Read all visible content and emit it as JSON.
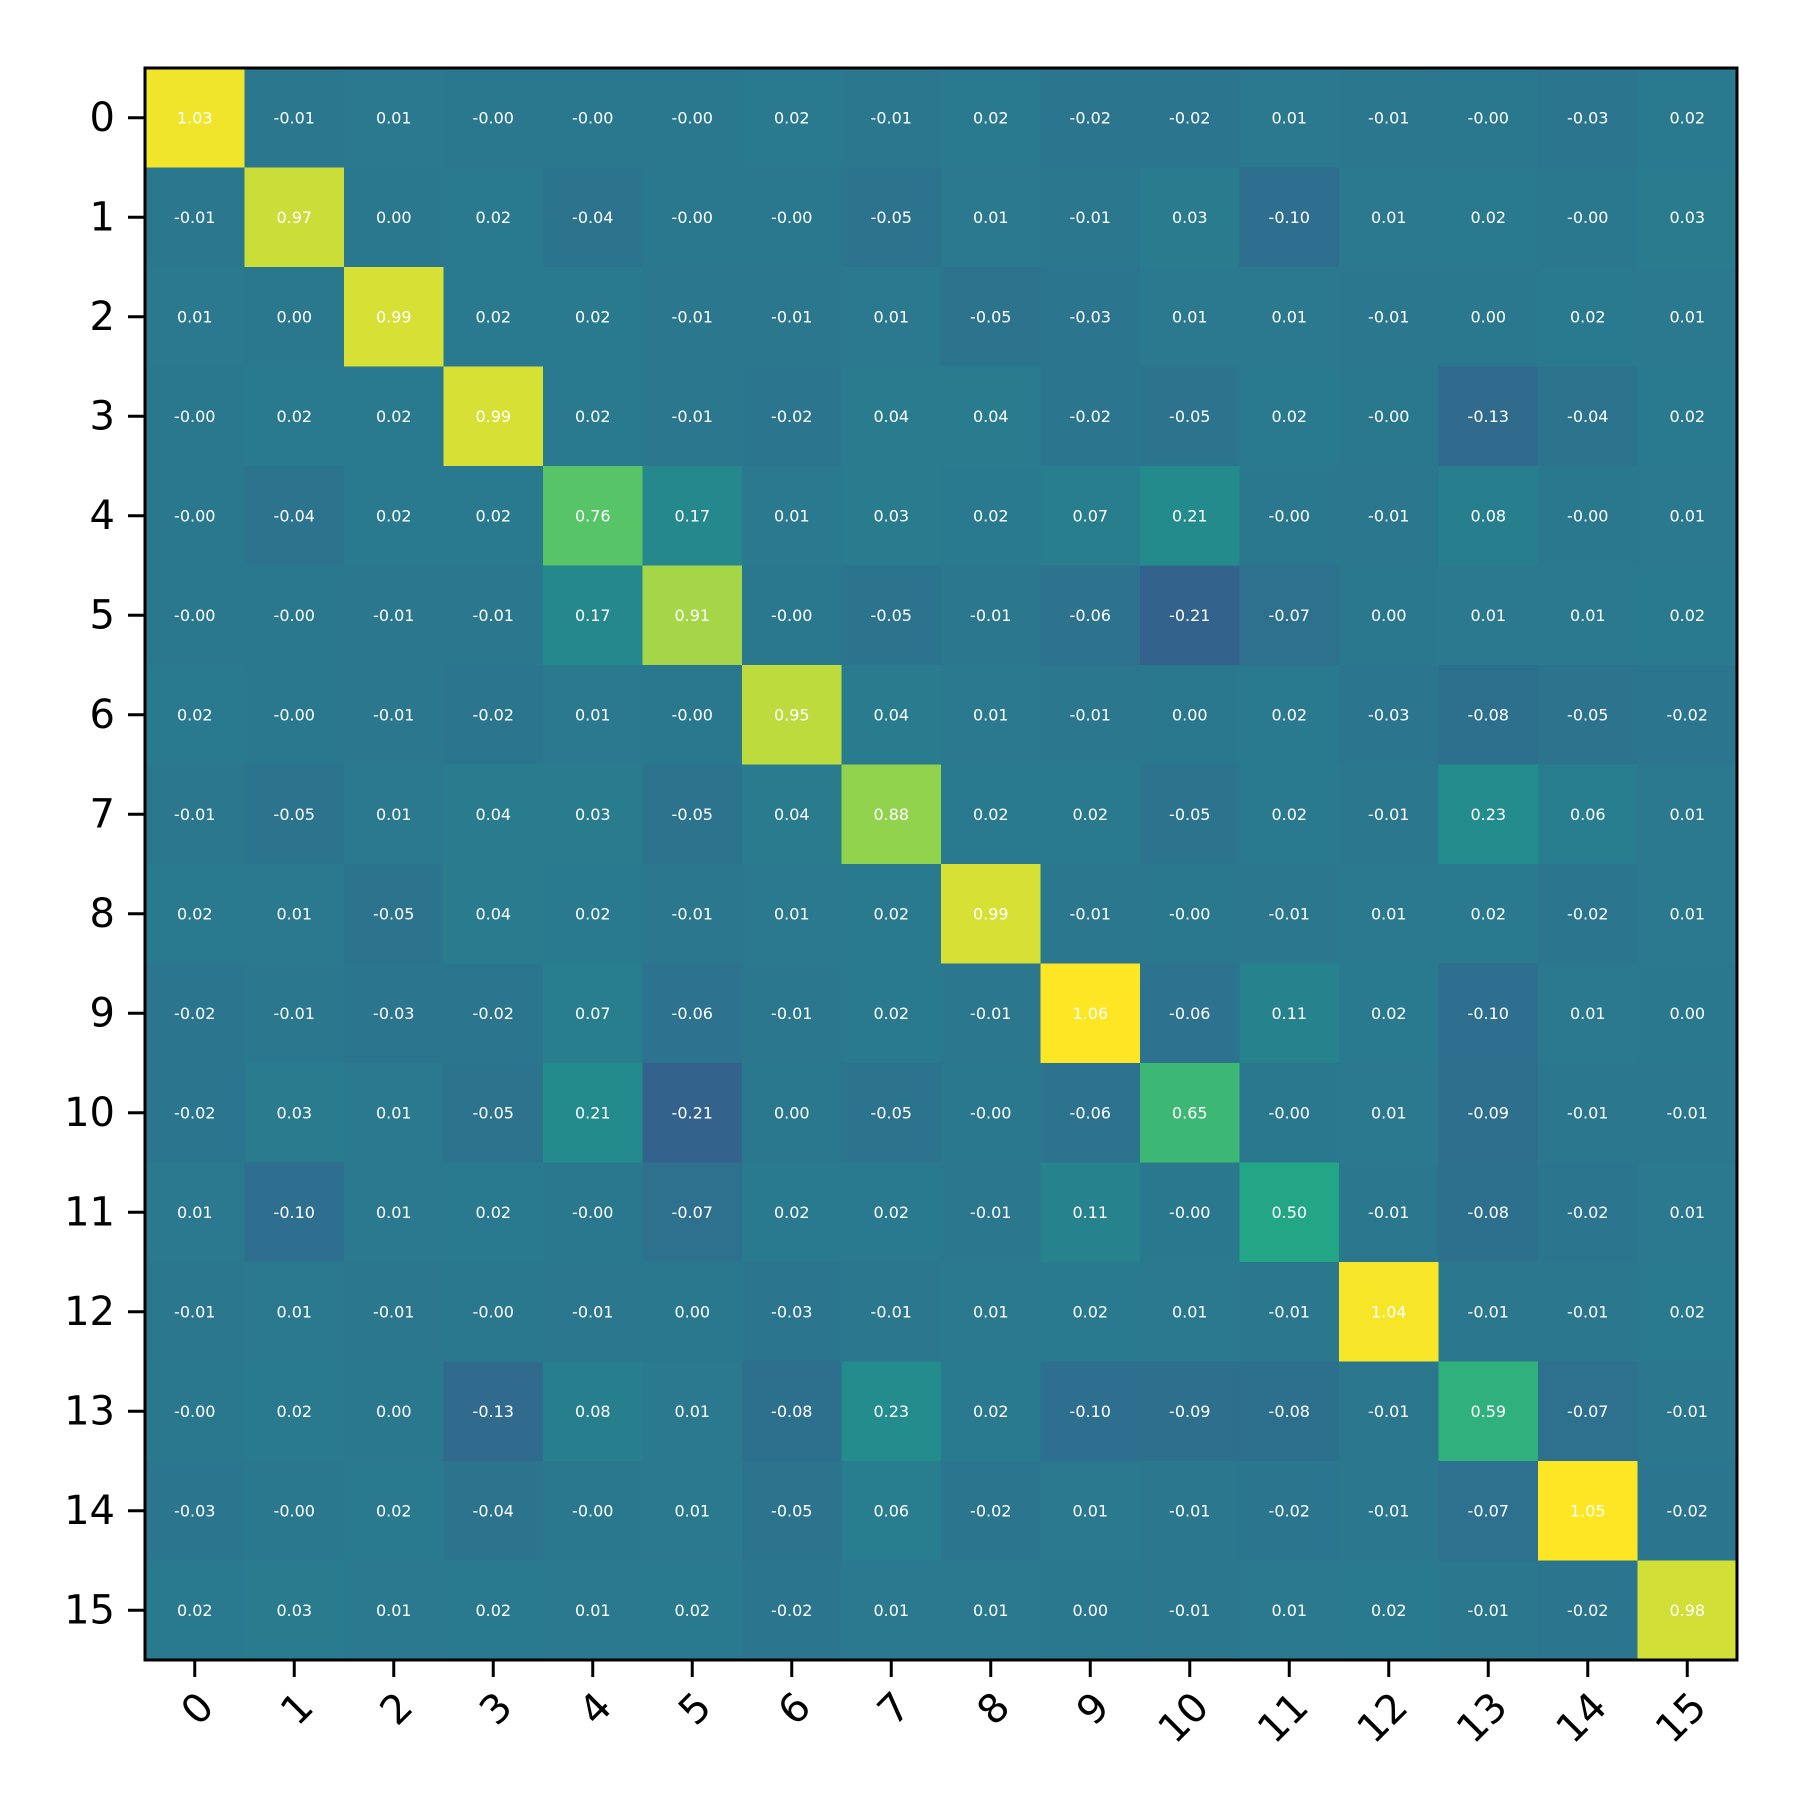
{
  "chart_data": {
    "type": "heatmap",
    "title": "",
    "xlabel": "",
    "ylabel": "",
    "x_categories": [
      "0",
      "1",
      "2",
      "3",
      "4",
      "5",
      "6",
      "7",
      "8",
      "9",
      "10",
      "11",
      "12",
      "13",
      "14",
      "15"
    ],
    "y_categories": [
      "0",
      "1",
      "2",
      "3",
      "4",
      "5",
      "6",
      "7",
      "8",
      "9",
      "10",
      "11",
      "12",
      "13",
      "14",
      "15"
    ],
    "colormap": "viridis",
    "color_range": [
      -1.05,
      1.05
    ],
    "legend": "none",
    "grid": false,
    "values": [
      [
        1.03,
        -0.01,
        0.01,
        -0.0,
        -0.0,
        -0.0,
        0.02,
        -0.01,
        0.02,
        -0.02,
        -0.02,
        0.01,
        -0.01,
        -0.0,
        -0.03,
        0.02
      ],
      [
        -0.01,
        0.97,
        0.0,
        0.02,
        -0.04,
        -0.0,
        -0.0,
        -0.05,
        0.01,
        -0.01,
        0.03,
        -0.1,
        0.01,
        0.02,
        -0.0,
        0.03
      ],
      [
        0.01,
        0.0,
        0.99,
        0.02,
        0.02,
        -0.01,
        -0.01,
        0.01,
        -0.05,
        -0.03,
        0.01,
        0.01,
        -0.01,
        0.0,
        0.02,
        0.01
      ],
      [
        -0.0,
        0.02,
        0.02,
        0.99,
        0.02,
        -0.01,
        -0.02,
        0.04,
        0.04,
        -0.02,
        -0.05,
        0.02,
        -0.0,
        -0.13,
        -0.04,
        0.02
      ],
      [
        -0.0,
        -0.04,
        0.02,
        0.02,
        0.76,
        0.17,
        0.01,
        0.03,
        0.02,
        0.07,
        0.21,
        -0.0,
        -0.01,
        0.08,
        -0.0,
        0.01
      ],
      [
        -0.0,
        -0.0,
        -0.01,
        -0.01,
        0.17,
        0.91,
        -0.0,
        -0.05,
        -0.01,
        -0.06,
        -0.21,
        -0.07,
        0.0,
        0.01,
        0.01,
        0.02
      ],
      [
        0.02,
        -0.0,
        -0.01,
        -0.02,
        0.01,
        -0.0,
        0.95,
        0.04,
        0.01,
        -0.01,
        0.0,
        0.02,
        -0.03,
        -0.08,
        -0.05,
        -0.02
      ],
      [
        -0.01,
        -0.05,
        0.01,
        0.04,
        0.03,
        -0.05,
        0.04,
        0.88,
        0.02,
        0.02,
        -0.05,
        0.02,
        -0.01,
        0.23,
        0.06,
        0.01
      ],
      [
        0.02,
        0.01,
        -0.05,
        0.04,
        0.02,
        -0.01,
        0.01,
        0.02,
        0.99,
        -0.01,
        -0.0,
        -0.01,
        0.01,
        0.02,
        -0.02,
        0.01
      ],
      [
        -0.02,
        -0.01,
        -0.03,
        -0.02,
        0.07,
        -0.06,
        -0.01,
        0.02,
        -0.01,
        1.06,
        -0.06,
        0.11,
        0.02,
        -0.1,
        0.01,
        0.0
      ],
      [
        -0.02,
        0.03,
        0.01,
        -0.05,
        0.21,
        -0.21,
        0.0,
        -0.05,
        -0.0,
        -0.06,
        0.65,
        -0.0,
        0.01,
        -0.09,
        -0.01,
        -0.01
      ],
      [
        0.01,
        -0.1,
        0.01,
        0.02,
        -0.0,
        -0.07,
        0.02,
        0.02,
        -0.01,
        0.11,
        -0.0,
        0.5,
        -0.01,
        -0.08,
        -0.02,
        0.01
      ],
      [
        -0.01,
        0.01,
        -0.01,
        -0.0,
        -0.01,
        0.0,
        -0.03,
        -0.01,
        0.01,
        0.02,
        0.01,
        -0.01,
        1.04,
        -0.01,
        -0.01,
        0.02
      ],
      [
        -0.0,
        0.02,
        0.0,
        -0.13,
        0.08,
        0.01,
        -0.08,
        0.23,
        0.02,
        -0.1,
        -0.09,
        -0.08,
        -0.01,
        0.59,
        -0.07,
        -0.01
      ],
      [
        -0.03,
        -0.0,
        0.02,
        -0.04,
        -0.0,
        0.01,
        -0.05,
        0.06,
        -0.02,
        0.01,
        -0.01,
        -0.02,
        -0.01,
        -0.07,
        1.05,
        -0.02
      ],
      [
        0.02,
        0.03,
        0.01,
        0.02,
        0.01,
        0.02,
        -0.02,
        0.01,
        0.01,
        0.0,
        -0.01,
        0.01,
        0.02,
        -0.01,
        -0.02,
        0.98
      ]
    ]
  }
}
